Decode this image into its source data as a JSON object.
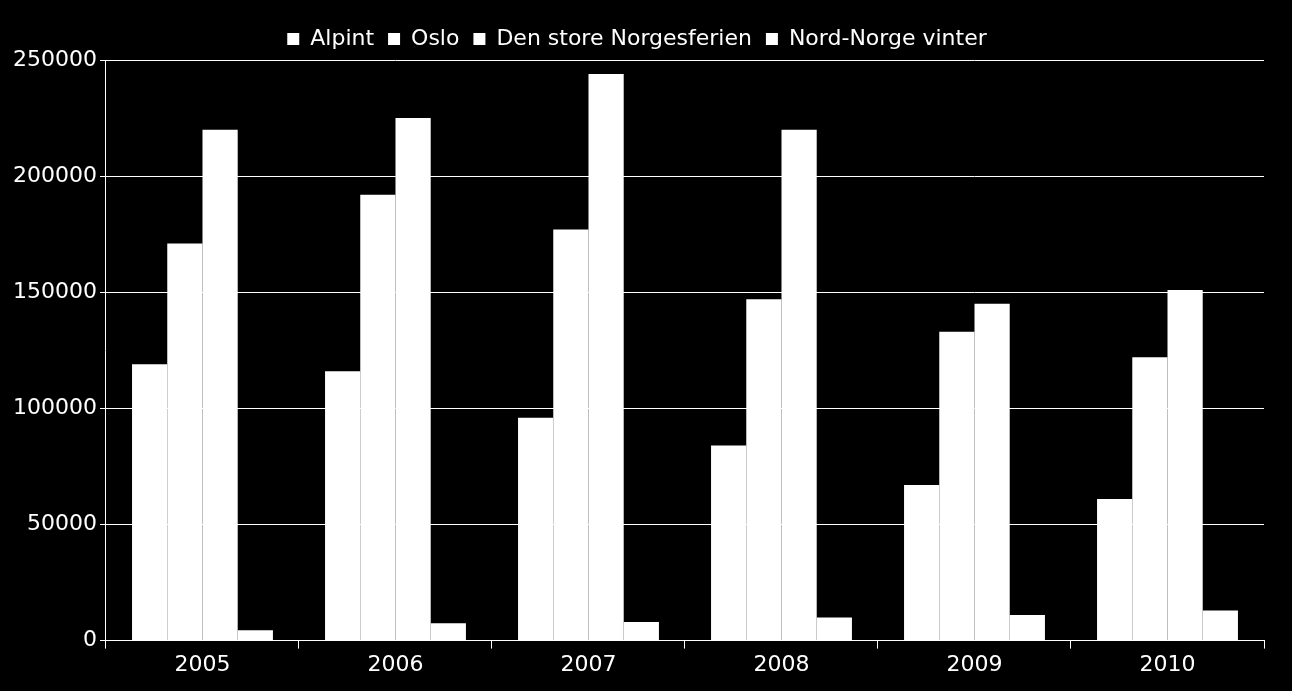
{
  "chart_data": {
    "type": "bar",
    "categories": [
      "2005",
      "2006",
      "2007",
      "2008",
      "2009",
      "2010"
    ],
    "series": [
      {
        "name": "Alpint",
        "color": "#ffffff",
        "values": [
          119000,
          116000,
          96000,
          84000,
          67000,
          61000
        ]
      },
      {
        "name": "Oslo",
        "color": "#ffffff",
        "values": [
          171000,
          192000,
          177000,
          147000,
          133000,
          122000
        ]
      },
      {
        "name": "Den store Norgesferien",
        "color": "#ffffff",
        "values": [
          220000,
          225000,
          244000,
          220000,
          145000,
          151000
        ]
      },
      {
        "name": "Nord-Norge vinter",
        "color": "#ffffff",
        "values": [
          4500,
          7500,
          8000,
          10000,
          11000,
          13000
        ]
      }
    ],
    "ylim": [
      0,
      250000
    ],
    "yticks": [
      0,
      50000,
      100000,
      150000,
      200000,
      250000
    ],
    "grid": true,
    "legend": "top"
  }
}
